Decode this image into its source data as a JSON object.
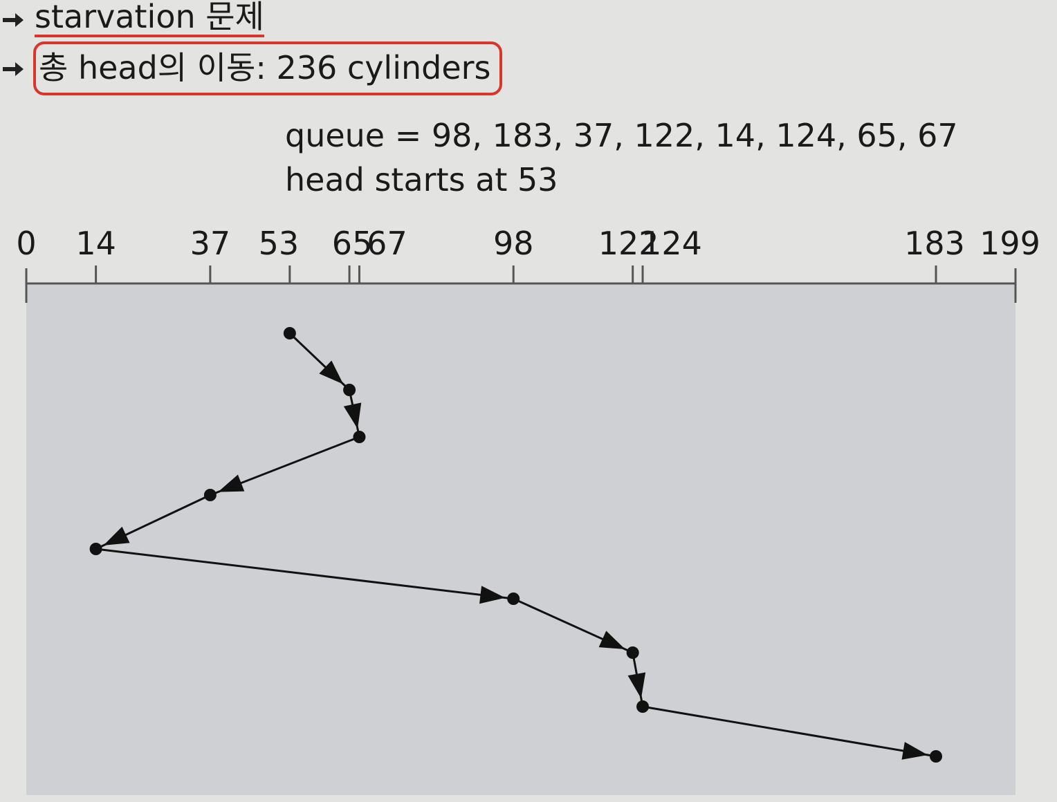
{
  "bullets": {
    "starvation": "starvation 문제",
    "total_movement": "총 head의 이동: 236 cylinders"
  },
  "queue_line": "queue = 98, 183, 37, 122, 14, 124, 65, 67",
  "head_line": "head starts at 53",
  "axis": {
    "min": 0,
    "max": 199,
    "ticks": [
      {
        "value": 0,
        "label": "0"
      },
      {
        "value": 14,
        "label": "14"
      },
      {
        "value": 37,
        "label": "37"
      },
      {
        "value": 53,
        "label": "53"
      },
      {
        "value": 65,
        "label": "65"
      },
      {
        "value": 67,
        "label": "67"
      },
      {
        "value": 98,
        "label": "98"
      },
      {
        "value": 122,
        "label": "122"
      },
      {
        "value": 124,
        "label": "124"
      },
      {
        "value": 183,
        "label": "183"
      },
      {
        "value": 199,
        "label": "199"
      }
    ]
  },
  "head_path": [
    53,
    65,
    67,
    37,
    14,
    98,
    122,
    124,
    183
  ],
  "colors": {
    "highlight": "#d9362b",
    "plot_area": "#cfd0d4",
    "background": "#e3e3e1"
  }
}
